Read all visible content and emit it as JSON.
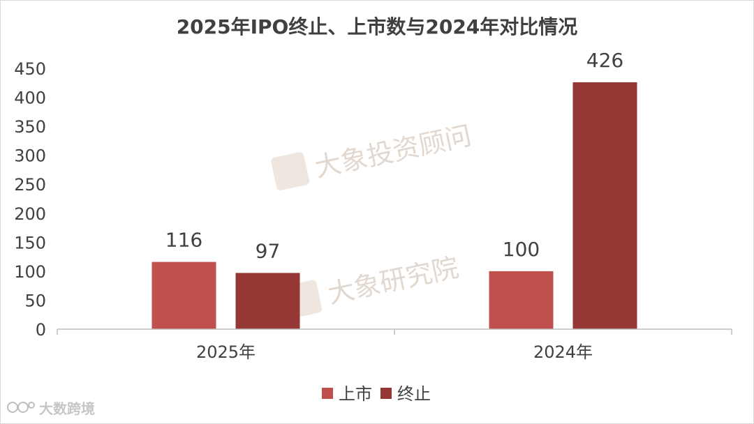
{
  "chart_data": {
    "type": "bar",
    "title": "2025年IPO终止、上市数与2024年对比情况",
    "categories": [
      "2025年",
      "2024年"
    ],
    "series": [
      {
        "name": "上市",
        "values": [
          116,
          100
        ],
        "color": "#c0504d"
      },
      {
        "name": "终止",
        "values": [
          97,
          426
        ],
        "color": "#953735"
      }
    ],
    "ylim": [
      0,
      450
    ],
    "yticks": [
      0,
      50,
      100,
      150,
      200,
      250,
      300,
      350,
      400,
      450
    ],
    "grid": false,
    "legend": "bottom",
    "xlabel": "",
    "ylabel": ""
  },
  "watermarks": [
    "大象投资顾问",
    "大象研究院"
  ],
  "brand": {
    "label": "大数跨境",
    "icon": "dashuju-logo-icon"
  }
}
